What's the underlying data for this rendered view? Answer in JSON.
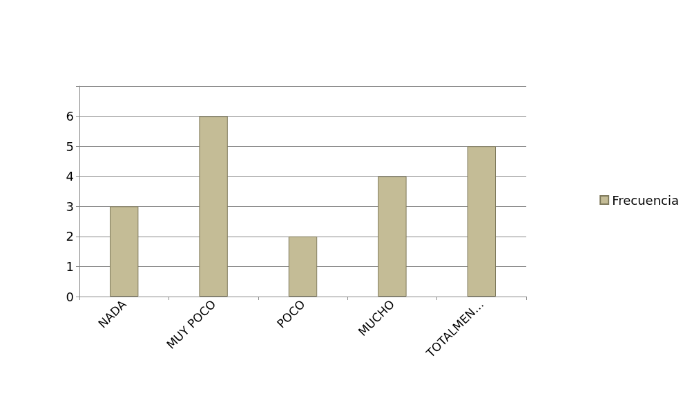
{
  "chart_data": {
    "type": "bar",
    "categories": [
      "NADA",
      "MUY POCO",
      "POCO",
      "MUCHO",
      "TOTALMEN…"
    ],
    "series": [
      {
        "name": "Frecuencia",
        "color": "#c4bc96",
        "values": [
          3,
          6,
          2,
          4,
          5
        ]
      }
    ],
    "ylim": [
      0,
      7
    ],
    "yticks": [
      0,
      1,
      2,
      3,
      4,
      5,
      6,
      {
        "value": 7,
        "label": null
      }
    ],
    "grid": "y",
    "legend": "right"
  }
}
